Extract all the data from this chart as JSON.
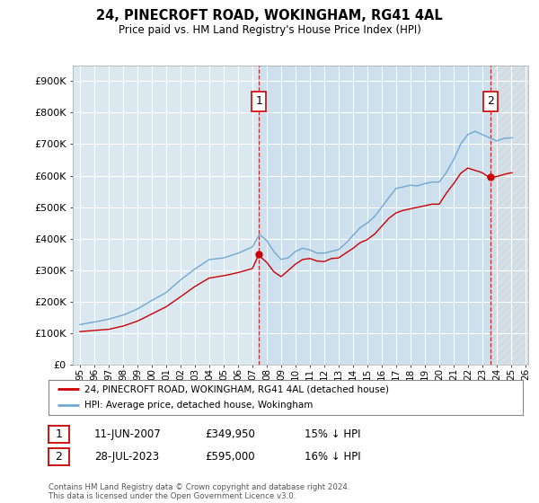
{
  "title": "24, PINECROFT ROAD, WOKINGHAM, RG41 4AL",
  "subtitle": "Price paid vs. HM Land Registry's House Price Index (HPI)",
  "legend_line1": "24, PINECROFT ROAD, WOKINGHAM, RG41 4AL (detached house)",
  "legend_line2": "HPI: Average price, detached house, Wokingham",
  "annotation1": {
    "num": "1",
    "date": "11-JUN-2007",
    "price": "£349,950",
    "note": "15% ↓ HPI"
  },
  "annotation2": {
    "num": "2",
    "date": "28-JUL-2023",
    "price": "£595,000",
    "note": "16% ↓ HPI"
  },
  "footer": "Contains HM Land Registry data © Crown copyright and database right 2024.\nThis data is licensed under the Open Government Licence v3.0.",
  "hpi_color": "#6fa8d0",
  "price_color": "#cc0000",
  "annotation_color": "#cc0000",
  "bg_color": "#ffffff",
  "plot_bg_color": "#dce8f0",
  "fill_between_color": "#c8ddf0",
  "grid_color": "#ffffff",
  "ylim": [
    0,
    950000
  ],
  "yticks": [
    0,
    100000,
    200000,
    300000,
    400000,
    500000,
    600000,
    700000,
    800000,
    900000
  ],
  "ytick_labels": [
    "£0",
    "£100K",
    "£200K",
    "£300K",
    "£400K",
    "£500K",
    "£600K",
    "£700K",
    "£800K",
    "£900K"
  ],
  "sale1_year": 2007.45,
  "sale1_price": 349950,
  "sale2_year": 2023.57,
  "sale2_price": 595000,
  "xlim_left": 1994.5,
  "xlim_right": 2026.2,
  "xtick_years": [
    1995,
    1996,
    1997,
    1998,
    1999,
    2000,
    2001,
    2002,
    2003,
    2004,
    2005,
    2006,
    2007,
    2008,
    2009,
    2010,
    2011,
    2012,
    2013,
    2014,
    2015,
    2016,
    2017,
    2018,
    2019,
    2020,
    2021,
    2022,
    2023,
    2024,
    2025,
    2026
  ]
}
